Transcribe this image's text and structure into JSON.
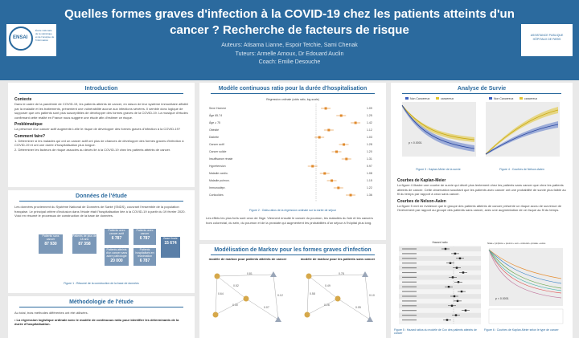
{
  "header": {
    "title": "Quelles formes graves d'infection à la COVID-19 chez les patients atteints d'un cancer ? Recherche de facteurs de risque",
    "authors": "Auteurs: Atisama Lianne, Espoir Tetchie, Sami Chenak",
    "tutors": "Tuteurs: Armelle Arnoux, Dr Edouard Auclin",
    "coach": "Coach: Emilie Desouche",
    "logo_left_mark": "ENSAI",
    "logo_left_text": "École nationale de la statistique et de l'analyse de l'information",
    "logo_right_text": "ASSISTANCE PUBLIQUE HÔPITAUX DE PARIS"
  },
  "intro": {
    "title": "Introduction",
    "context_h": "Contexte",
    "context": "Dans le cadre de la pandémie de COVID-19, les patients atteints de cancer, en raison de leur système immunitaire affaibli par la maladie et les traitements, présentent une vulnérabilité accrue aux infections sévères. Il semble donc logique de supposer que ces patients sont plus susceptibles de développer des formes graves de la COVID-19. La musique d'études confirmant cette réalité en France nous suggère une étude afin d'estimer ce risque.",
    "problem_h": "Problématique",
    "problem": "La présence d'un cancer actif augmente-t-elle le risque de développer des formes graves d'infection à la COVID-19?",
    "how_h": "Comment faire?",
    "how_1": "1. Déterminer si les malades qui ont un cancer actif ont plus de chances de développer des formes graves d'infection à COVID-19 et ont une durée d'hospitalisation plus longue.",
    "how_2": "2. Déterminer les facteurs de risque associés au décès lié à la COVID-19 chez les patients atteints de cancer."
  },
  "data_sec": {
    "title": "Données de l'étude",
    "text": "Les données proviennent du Système National de Données de Santé (SNDS), couvrant l'ensemble de la population française. Le principal critère d'inclusion dans l'étude était l'hospitalisation liée à la COVID-19 à partir du 19 février 2020. Voici en résumé le processus de construction de la base de données.",
    "box1_label": "Patients sans cancer",
    "box1_num": "87 930",
    "box2_label": "Patients de plus de 18 ans",
    "box2_num": "87 358",
    "box3_label": "Patients avec cancer actif",
    "box3_num": "6 787",
    "box4_label": "Patients atteints d'un cancer sans autre pathologie",
    "box4_num": "20 000",
    "box5_label": "Patients avec cancer",
    "box5_num": "6 787",
    "box6_label": "Patients hospitalisés en réanimation",
    "box6_num": "6 787",
    "box7_label": "Base finale",
    "box7_num": "15 674",
    "caption": "Figure 1 : Résumé de la construction de la base de données"
  },
  "method": {
    "title": "Méthodologie de l'étude",
    "intro": "Au total, trois méthodes différentes ont été utilisées.",
    "bullet": "• La régression logistique ordinale avec le modèle de continuous ratio pour identifier les déterminants de la durée d'hospitalisation."
  },
  "forest": {
    "title": "Modèle continuous ratio pour la durée d'hospitalisation",
    "plot_title": "Régression ordinale (odds ratio, log-scale)",
    "labels": [
      "Sexe Homme",
      "Âge 65-74",
      "Âge ≥ 75",
      "Obésité",
      "Diabète",
      "Cancer actif",
      "Cancer solide",
      "Insuffisance rénale",
      "Hypertension",
      "Maladie cardio.",
      "Maladie pulmon.",
      "Immunodépr.",
      "Corticoïdes"
    ],
    "ors": [
      "1.09",
      "1.25",
      "1.42",
      "1.12",
      "1.03",
      "1.28",
      "1.20",
      "1.31",
      "0.97",
      "1.08",
      "1.15",
      "1.22",
      "1.36"
    ],
    "caption": "Figure 2 : Odds-ratios de la régression ordinale sur la durée de séjour",
    "text": "Les effets les plus forts sont ceux de l'âge. Viennent ensuite le cancer du poumon, les maladies du foie et les cancers hors colorectal, du sein, du poumon et de la prostate qui augmentent les probabilités d'un séjour à l'hôpital plus long."
  },
  "markov": {
    "title": "Modélisation de Markov pour les formes graves d'infection",
    "left_h": "modèle de markov pour patients atteints de cancer",
    "right_h": "modèle de markov pour les patients sans cancer",
    "probs_left": [
      "0.81",
      "0.64",
      "0.12",
      "0.30",
      "0.07",
      "0.52"
    ],
    "probs_right": [
      "0.78",
      "0.58",
      "0.10",
      "0.26",
      "0.05",
      "0.49"
    ]
  },
  "survival": {
    "title": "Analyse de Survie",
    "legend_1": "Non Cancereux",
    "legend_2": "cancereux",
    "pval": "p < 0.0001",
    "cap_km": "Figure 3 : Kaplan-Meier de la survie",
    "cap_na": "Figure 4 : Courbes de Nelson-Aalen",
    "km_h": "Courbes de Kaplan-Meier",
    "km_text": "La figure 4 illustre une courbe de survie qui décrit plus lentement chez les patients sans cancer que chez les patients atteints de cancer. Cette observation suscitant que les patients avec cancer ont une probabilité de survie plus faible au fil du temps par rapport à ceux sans cancer.",
    "na_h": "Courbes de Nelson-Aalen",
    "na_text": "La figure 5 met en évidence que le groupe des patients atteints de cancer présente un risque accru de survenue de l'événement par rapport au groupe des patients sans cancer, avec une augmentation de ce risque au fil du temps.",
    "cox_title": "Hazard ratio",
    "cap_cox": "Figure 5 : Hazard ratios du modèle de Cox des patients atteints de cancer",
    "cap_kmt": "Figure 6 : Courbes de Kaplan-Meier selon le type de cancer",
    "pval2": "p < 0.0001",
    "legend_strata": "Strata + lymphome + poumon + sein + colorectal + prostate + autres"
  },
  "colors": {
    "primary": "#2b6a9e",
    "accent1": "#3b5fc0",
    "accent2": "#e2c42f",
    "orange": "#e08a2c"
  }
}
